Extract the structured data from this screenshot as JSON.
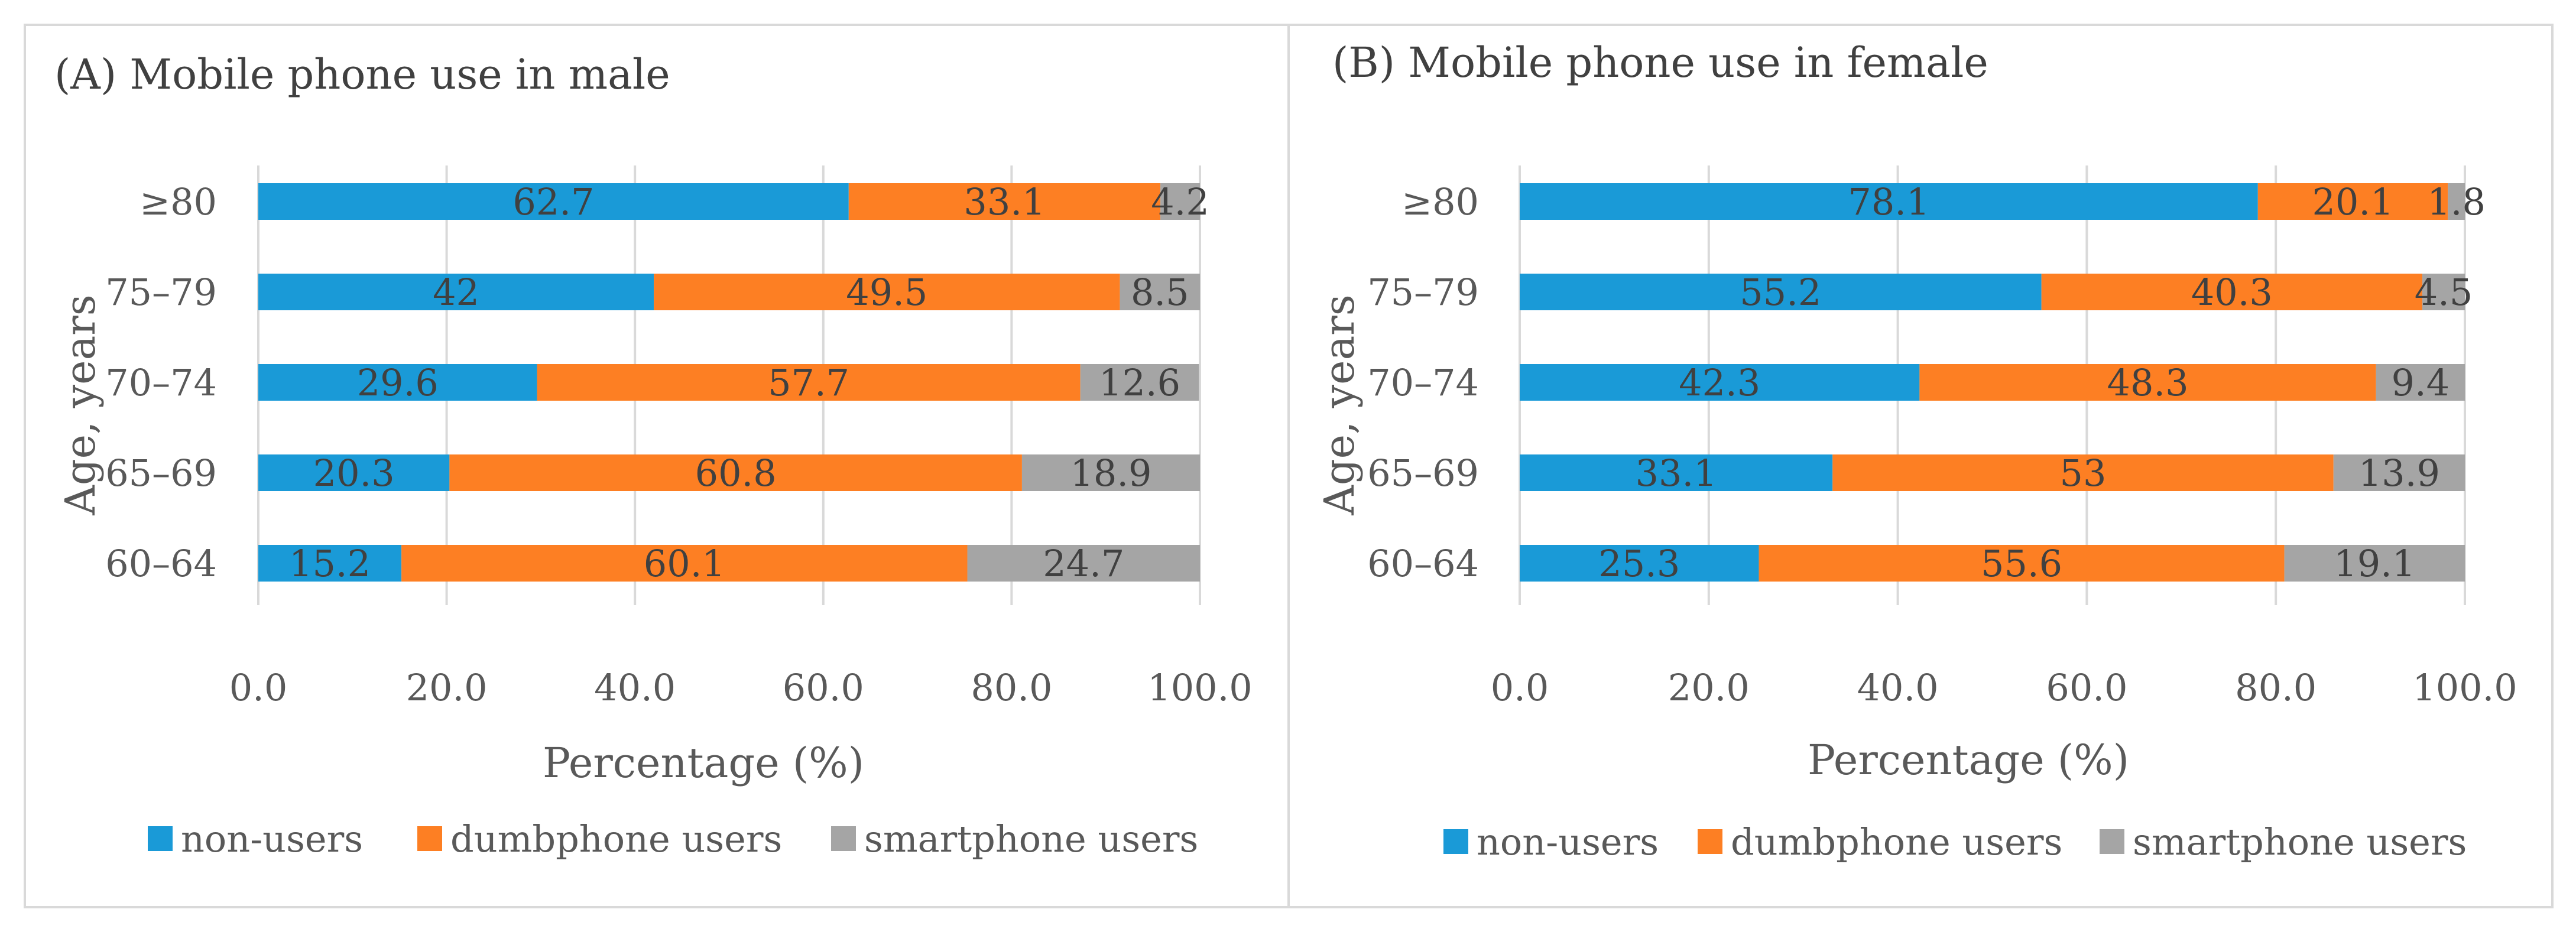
{
  "colors": {
    "non_users": "#1a9ad7",
    "dumbphone_users": "#fd7f23",
    "smartphone_users": "#a5a5a5"
  },
  "chart_data": [
    {
      "type": "bar",
      "orientation": "horizontal",
      "stacked": true,
      "title": "(A) Mobile phone use in male",
      "xlabel": "Percentage (%)",
      "ylabel": "Age, years",
      "xlim": [
        0,
        100
      ],
      "xticks": [
        "0.0",
        "20.0",
        "40.0",
        "60.0",
        "80.0",
        "100.0"
      ],
      "grid": true,
      "legend_position": "bottom",
      "categories": [
        "≥80",
        "75–79",
        "70–74",
        "65–69",
        "60–64"
      ],
      "series": [
        {
          "name": "non-users",
          "values": [
            62.7,
            42,
            29.6,
            20.3,
            15.2
          ],
          "labels": [
            "62.7",
            "42",
            "29.6",
            "20.3",
            "15.2"
          ]
        },
        {
          "name": "dumbphone users",
          "values": [
            33.1,
            49.5,
            57.7,
            60.8,
            60.1
          ],
          "labels": [
            "33.1",
            "49.5",
            "57.7",
            "60.8",
            "60.1"
          ]
        },
        {
          "name": "smartphone users",
          "values": [
            4.2,
            8.5,
            12.6,
            18.9,
            24.7
          ],
          "labels": [
            "4.2",
            "8.5",
            "12.6",
            "18.9",
            "24.7"
          ]
        }
      ]
    },
    {
      "type": "bar",
      "orientation": "horizontal",
      "stacked": true,
      "title": "(B) Mobile phone use in female",
      "xlabel": "Percentage (%)",
      "ylabel": "Age, years",
      "xlim": [
        0,
        100
      ],
      "xticks": [
        "0.0",
        "20.0",
        "40.0",
        "60.0",
        "80.0",
        "100.0"
      ],
      "grid": true,
      "legend_position": "bottom",
      "categories": [
        "≥80",
        "75–79",
        "70–74",
        "65–69",
        "60–64"
      ],
      "series": [
        {
          "name": "non-users",
          "values": [
            78.1,
            55.2,
            42.3,
            33.1,
            25.3
          ],
          "labels": [
            "78.1",
            "55.2",
            "42.3",
            "33.1",
            "25.3"
          ]
        },
        {
          "name": "dumbphone users",
          "values": [
            20.1,
            40.3,
            48.3,
            53,
            55.6
          ],
          "labels": [
            "20.1",
            "40.3",
            "48.3",
            "53",
            "55.6"
          ]
        },
        {
          "name": "smartphone users",
          "values": [
            1.8,
            4.5,
            9.4,
            13.9,
            19.1
          ],
          "labels": [
            "1.8",
            "4.5",
            "9.4",
            "13.9",
            "19.1"
          ]
        }
      ]
    }
  ]
}
